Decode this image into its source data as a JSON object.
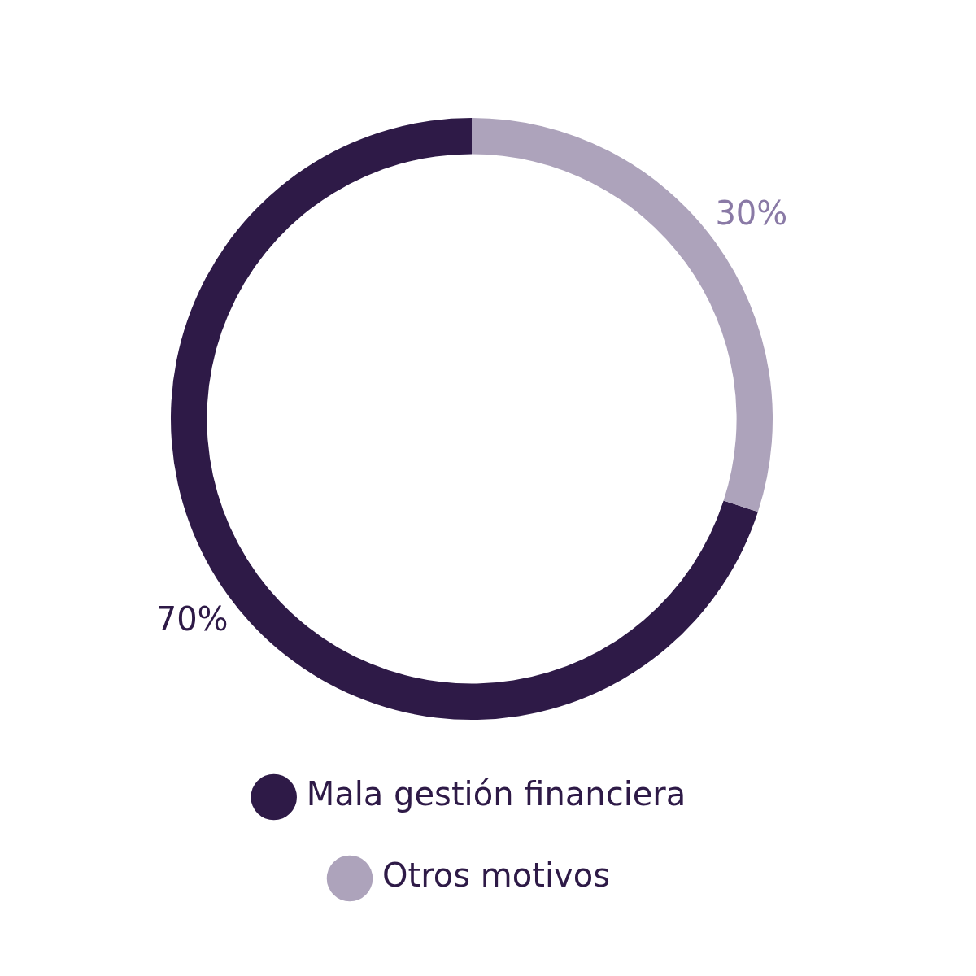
{
  "chart_data": {
    "type": "donut",
    "categories": [
      "Mala gestión financiera",
      "Otros motivos"
    ],
    "values": [
      70,
      30
    ],
    "colors": [
      "#2e1a47",
      "#ada3bb"
    ],
    "value_labels": [
      "70%",
      "30%"
    ],
    "legend": "bottom"
  }
}
